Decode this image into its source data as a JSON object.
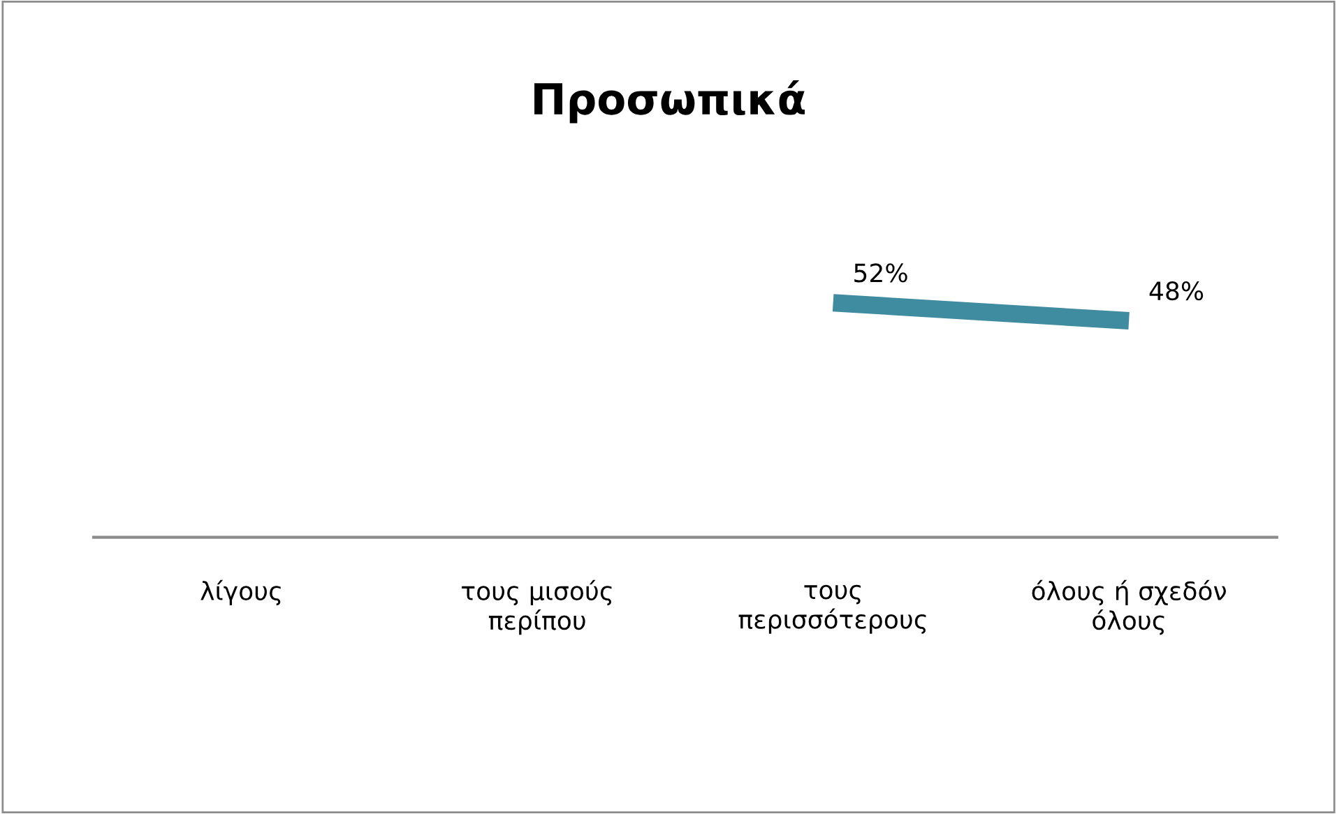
{
  "chart_data": {
    "type": "line",
    "title": "Προσωπικά",
    "categories": [
      "λίγους",
      "τους μισούς\nπερίπου",
      "τους\nπερισσότερους",
      "όλους ή σχεδόν\nόλους"
    ],
    "series": [
      {
        "color": "#3f8ba0",
        "values": [
          null,
          null,
          52,
          48
        ],
        "value_labels": [
          null,
          null,
          "52%",
          "48%"
        ]
      }
    ],
    "tick_labels": "x",
    "grid": false,
    "legend": false,
    "marker": "none",
    "line_style": "solid"
  }
}
